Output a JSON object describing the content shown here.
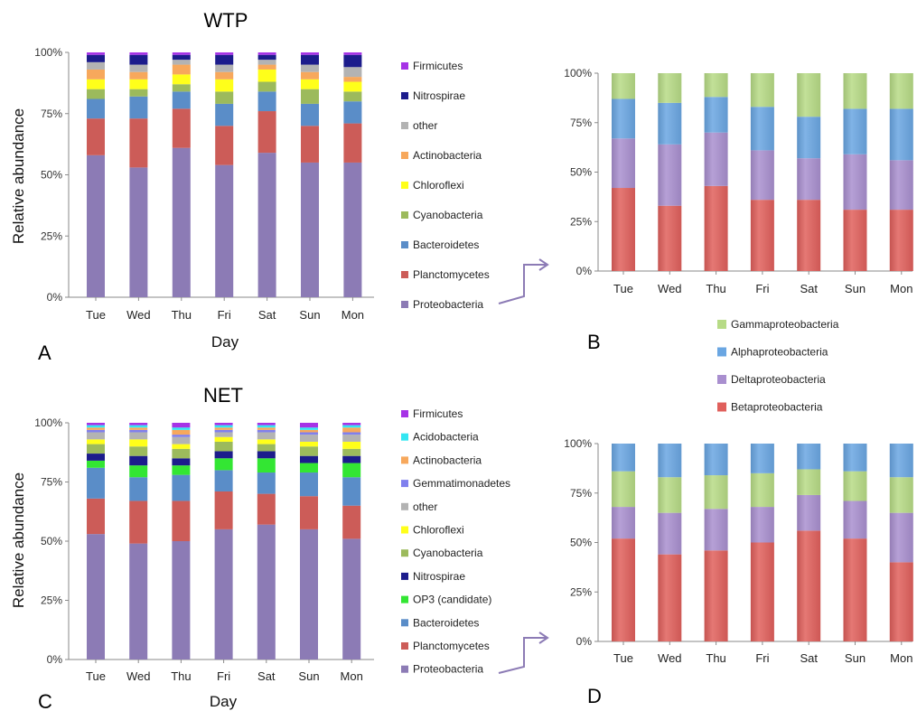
{
  "chart_data": [
    {
      "panel": "A",
      "type": "bar",
      "stacked": true,
      "title": "WTP",
      "xlabel": "Day",
      "ylabel": "Relative abundance",
      "ylim": [
        0,
        100
      ],
      "yticks": [
        "0%",
        "25%",
        "50%",
        "75%",
        "100%"
      ],
      "categories": [
        "Tue",
        "Wed",
        "Thu",
        "Fri",
        "Sat",
        "Sun",
        "Mon"
      ],
      "legend_order": [
        "Firmicutes",
        "Nitrospirae",
        "other",
        "Actinobacteria",
        "Chloroflexi",
        "Cyanobacteria",
        "Bacteroidetes",
        "Planctomycetes",
        "Proteobacteria"
      ],
      "series": [
        {
          "name": "Proteobacteria",
          "color": "#8c7bb5",
          "values": [
            58,
            53,
            61,
            54,
            59,
            55,
            55
          ]
        },
        {
          "name": "Planctomycetes",
          "color": "#cc5c58",
          "values": [
            15,
            20,
            16,
            16,
            17,
            15,
            16
          ]
        },
        {
          "name": "Bacteroidetes",
          "color": "#5a8dc8",
          "values": [
            8,
            9,
            7,
            9,
            8,
            9,
            9
          ]
        },
        {
          "name": "Cyanobacteria",
          "color": "#9cba5c",
          "values": [
            4,
            3,
            3,
            5,
            4,
            6,
            4
          ]
        },
        {
          "name": "Chloroflexi",
          "color": "#ffff1a",
          "values": [
            4,
            4,
            4,
            5,
            5,
            4,
            4
          ]
        },
        {
          "name": "Actinobacteria",
          "color": "#f7a85c",
          "values": [
            4,
            3,
            4,
            3,
            2,
            3,
            2
          ]
        },
        {
          "name": "other",
          "color": "#b3b3b3",
          "values": [
            3,
            3,
            2,
            3,
            2,
            3,
            4
          ]
        },
        {
          "name": "Nitrospirae",
          "color": "#1c1c8c",
          "values": [
            3,
            4,
            2,
            4,
            2,
            4,
            5
          ]
        },
        {
          "name": "Firmicutes",
          "color": "#a633e6",
          "values": [
            1,
            1,
            1,
            1,
            1,
            1,
            1
          ]
        }
      ]
    },
    {
      "panel": "B",
      "type": "bar",
      "stacked": true,
      "ylim": [
        0,
        100
      ],
      "yticks": [
        "0%",
        "25%",
        "50%",
        "75%",
        "100%"
      ],
      "categories": [
        "Tue",
        "Wed",
        "Thu",
        "Fri",
        "Sat",
        "Sun",
        "Mon"
      ],
      "legend_order": [
        "Gammaproteobacteria",
        "Alphaproteobacteria",
        "Deltaproteobacteria",
        "Betaproteobacteria"
      ],
      "series": [
        {
          "name": "Betaproteobacteria",
          "color": "#e0605c",
          "values": [
            42,
            33,
            43,
            36,
            36,
            31,
            31
          ]
        },
        {
          "name": "Deltaproteobacteria",
          "color": "#a98fcf",
          "values": [
            25,
            31,
            27,
            25,
            21,
            28,
            25
          ]
        },
        {
          "name": "Alphaproteobacteria",
          "color": "#6aa6e2",
          "values": [
            20,
            21,
            18,
            22,
            21,
            23,
            26
          ]
        },
        {
          "name": "Gammaproteobacteria",
          "color": "#b7db86",
          "values": [
            13,
            15,
            12,
            17,
            22,
            18,
            18
          ]
        }
      ]
    },
    {
      "panel": "C",
      "type": "bar",
      "stacked": true,
      "title": "NET",
      "xlabel": "Day",
      "ylabel": "Relative abundance",
      "ylim": [
        0,
        100
      ],
      "yticks": [
        "0%",
        "25%",
        "50%",
        "75%",
        "100%"
      ],
      "categories": [
        "Tue",
        "Wed",
        "Thu",
        "Fri",
        "Sat",
        "Sun",
        "Mon"
      ],
      "legend_order": [
        "Firmicutes",
        "Acidobacteria",
        "Actinobacteria",
        "Gemmatimonadetes",
        "other",
        "Chloroflexi",
        "Cyanobacteria",
        "Nitrospirae",
        "OP3 (candidate)",
        "Bacteroidetes",
        "Planctomycetes",
        "Proteobacteria"
      ],
      "series": [
        {
          "name": "Proteobacteria",
          "color": "#8c7bb5",
          "values": [
            53,
            49,
            50,
            55,
            57,
            55,
            51
          ]
        },
        {
          "name": "Planctomycetes",
          "color": "#cc5c58",
          "values": [
            15,
            18,
            17,
            16,
            13,
            14,
            14
          ]
        },
        {
          "name": "Bacteroidetes",
          "color": "#5a8dc8",
          "values": [
            13,
            10,
            11,
            9,
            9,
            10,
            12
          ]
        },
        {
          "name": "OP3 (candidate)",
          "color": "#33e633",
          "values": [
            3,
            5,
            4,
            5,
            6,
            4,
            6
          ]
        },
        {
          "name": "Nitrospirae",
          "color": "#1c1c8c",
          "values": [
            3,
            4,
            3,
            3,
            3,
            3,
            3
          ]
        },
        {
          "name": "Cyanobacteria",
          "color": "#9cba5c",
          "values": [
            4,
            4,
            4,
            4,
            3,
            4,
            3
          ]
        },
        {
          "name": "Chloroflexi",
          "color": "#ffff1a",
          "values": [
            2,
            3,
            2,
            2,
            2,
            2,
            3
          ]
        },
        {
          "name": "other",
          "color": "#b3b3b3",
          "values": [
            3,
            3,
            3,
            2,
            3,
            3,
            3
          ]
        },
        {
          "name": "Gemmatimonadetes",
          "color": "#8080ee",
          "values": [
            1,
            1,
            1,
            1,
            1,
            1,
            1
          ]
        },
        {
          "name": "Actinobacteria",
          "color": "#f7a85c",
          "values": [
            1,
            1,
            2,
            1,
            1,
            1,
            2
          ]
        },
        {
          "name": "Acidobacteria",
          "color": "#33e6f2",
          "values": [
            1,
            1,
            1,
            1,
            1,
            1,
            1
          ]
        },
        {
          "name": "Firmicutes",
          "color": "#a633e6",
          "values": [
            1,
            1,
            2,
            1,
            1,
            2,
            1
          ]
        }
      ]
    },
    {
      "panel": "D",
      "type": "bar",
      "stacked": true,
      "ylim": [
        0,
        100
      ],
      "yticks": [
        "0%",
        "25%",
        "50%",
        "75%",
        "100%"
      ],
      "categories": [
        "Tue",
        "Wed",
        "Thu",
        "Fri",
        "Sat",
        "Sun",
        "Mon"
      ],
      "legend_order": [
        "Gammaproteobacteria",
        "Alphaproteobacteria",
        "Deltaproteobacteria",
        "Betaproteobacteria"
      ],
      "series": [
        {
          "name": "Betaproteobacteria",
          "color": "#e0605c",
          "values": [
            52,
            44,
            46,
            50,
            56,
            52,
            40
          ]
        },
        {
          "name": "Deltaproteobacteria",
          "color": "#a98fcf",
          "values": [
            16,
            21,
            21,
            18,
            18,
            19,
            25
          ]
        },
        {
          "name": "Gammaproteobacteria",
          "color": "#b7db86",
          "values": [
            18,
            18,
            17,
            17,
            13,
            15,
            18
          ]
        },
        {
          "name": "Alphaproteobacteria",
          "color": "#6aa6e2",
          "values": [
            14,
            17,
            16,
            15,
            13,
            14,
            17
          ]
        }
      ]
    }
  ]
}
